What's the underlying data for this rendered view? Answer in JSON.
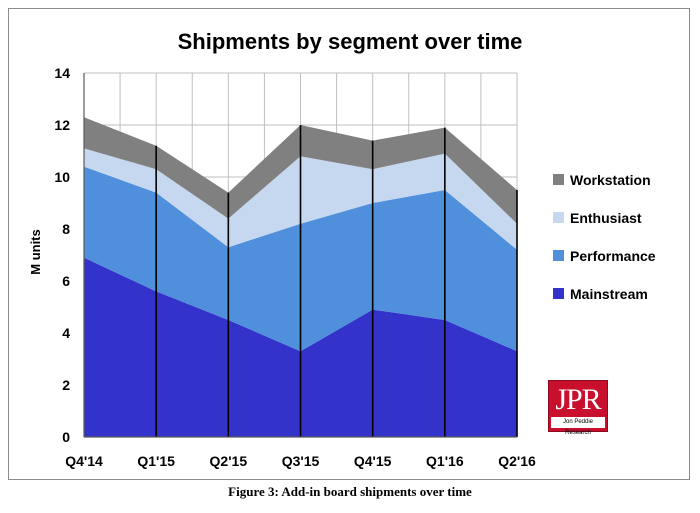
{
  "chart_data": {
    "type": "area",
    "stacked": true,
    "title": "Shipments by segment over time",
    "xlabel": "",
    "ylabel": "M units",
    "categories": [
      "Q4'14",
      "Q1'15",
      "Q2'15",
      "Q3'15",
      "Q4'15",
      "Q1'16",
      "Q2'16"
    ],
    "ylim": [
      0,
      14
    ],
    "yticks": [
      0,
      2,
      4,
      6,
      8,
      10,
      12,
      14
    ],
    "grid": true,
    "legend_position": "right",
    "series": [
      {
        "name": "Mainstream",
        "color": "#3333cc",
        "values": [
          6.9,
          5.6,
          4.5,
          3.3,
          4.9,
          4.5,
          3.3
        ]
      },
      {
        "name": "Performance",
        "color": "#4f8fdc",
        "values": [
          3.5,
          3.8,
          2.8,
          4.9,
          4.1,
          5.0,
          3.9
        ]
      },
      {
        "name": "Enthusiast",
        "color": "#c6d8f0",
        "values": [
          0.7,
          0.9,
          1.1,
          2.6,
          1.3,
          1.4,
          1.0
        ]
      },
      {
        "name": "Workstation",
        "color": "#808080",
        "values": [
          1.2,
          0.9,
          1.0,
          1.2,
          1.1,
          1.0,
          1.3
        ]
      }
    ]
  },
  "caption": "Figure 3: Add-in board shipments over time",
  "logo": {
    "mark": "JPR",
    "sub": "Jon Peddie Research"
  }
}
